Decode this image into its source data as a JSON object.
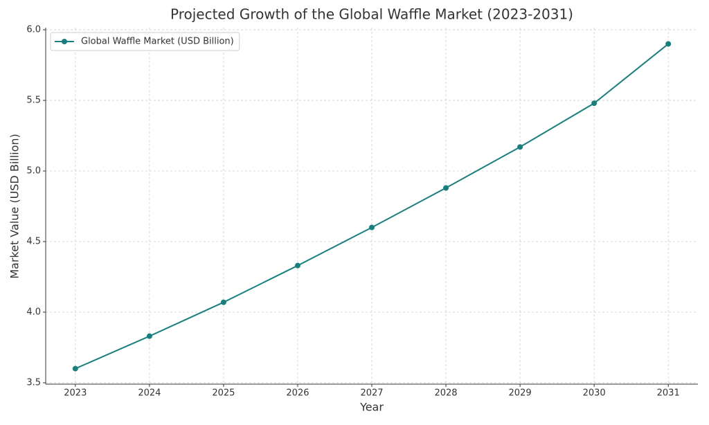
{
  "chart_data": {
    "type": "line",
    "title": "Projected Growth of the Global Waffle Market (2023-2031)",
    "x_label": "Year",
    "y_label": "Market Value (USD Billion)",
    "x": [
      2023,
      2024,
      2025,
      2026,
      2027,
      2028,
      2029,
      2030,
      2031
    ],
    "series": [
      {
        "name": "Global Waffle Market (USD Billion)",
        "color": "#17807e",
        "values": [
          3.6,
          3.83,
          4.07,
          4.33,
          4.6,
          4.88,
          5.17,
          5.48,
          5.9
        ]
      }
    ],
    "xlim": [
      2022.6,
      2031.4
    ],
    "xticks": [
      2023,
      2024,
      2025,
      2026,
      2027,
      2028,
      2029,
      2030,
      2031
    ],
    "ylim": [
      3.49,
      6.015
    ],
    "yticks": [
      3.5,
      {
        "value": 4,
        "label": "4.0"
      },
      4.5,
      {
        "value": 5,
        "label": "5.0"
      },
      5.5,
      {
        "value": 6,
        "label": "6.0"
      }
    ],
    "grid": true,
    "legend": "upper-left"
  }
}
